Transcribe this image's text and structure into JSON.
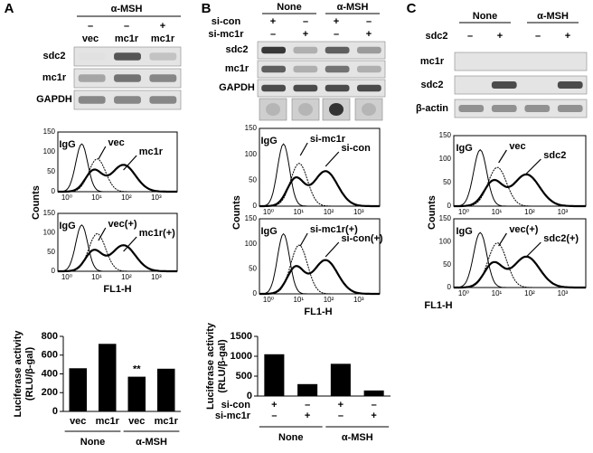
{
  "panels": [
    {
      "label": "A",
      "treatment": "α-MSH",
      "signs": [
        "–",
        "–",
        "+"
      ],
      "lanes": [
        "vec",
        "mc1r",
        "mc1r"
      ],
      "blot_rows": [
        "sdc2",
        "mc1r",
        "GAPDH"
      ],
      "flow": {
        "y_label": "Counts",
        "x_label": "FL1-H",
        "plots": [
          {
            "y_ticks": [
              "150",
              "100",
              "50",
              "0"
            ],
            "x_ticks": [
              "10⁰",
              "10¹",
              "10²",
              "10³"
            ],
            "annotations": [
              "IgG",
              "vec",
              "mc1r"
            ]
          },
          {
            "y_ticks": [
              "150",
              "100",
              "50",
              "0"
            ],
            "x_ticks": [
              "10⁰",
              "10¹",
              "10²",
              "10³"
            ],
            "annotations": [
              "IgG",
              "vec(+)",
              "mc1r(+)"
            ]
          }
        ]
      }
    },
    {
      "label": "B",
      "groups": [
        "None",
        "α-MSH"
      ],
      "sign_rows": [
        {
          "name": "si-con",
          "signs": [
            "+",
            "–",
            "+",
            "–"
          ]
        },
        {
          "name": "si-mc1r",
          "signs": [
            "–",
            "+",
            "–",
            "+"
          ]
        }
      ],
      "blot_rows": [
        "sdc2",
        "mc1r",
        "GAPDH"
      ],
      "flow": {
        "y_label": "Counts",
        "x_label": "FL1-H",
        "plots": [
          {
            "y_ticks": [
              "150",
              "100",
              "50",
              "0"
            ],
            "x_ticks": [
              "10⁰",
              "10¹",
              "10²",
              "10³"
            ],
            "annotations": [
              "IgG",
              "si-mc1r",
              "si-con"
            ]
          },
          {
            "y_ticks": [
              "150",
              "100",
              "50",
              "0"
            ],
            "x_ticks": [
              "10⁰",
              "10¹",
              "10²",
              "10³"
            ],
            "annotations": [
              "IgG",
              "si-mc1r(+)",
              "si-con(+)"
            ]
          }
        ]
      }
    },
    {
      "label": "C",
      "groups": [
        "None",
        "α-MSH"
      ],
      "sign_rows": [
        {
          "name": "sdc2",
          "signs": [
            "–",
            "+",
            "–",
            "+"
          ]
        }
      ],
      "blot_rows": [
        "mc1r",
        "sdc2",
        "β-actin"
      ],
      "flow": {
        "y_label": "Counts",
        "x_label": "FL1-H",
        "plots": [
          {
            "y_ticks": [
              "150",
              "100",
              "50",
              "0"
            ],
            "x_ticks": [
              "10⁰",
              "10¹",
              "10²",
              "10³"
            ],
            "annotations": [
              "IgG",
              "vec",
              "sdc2"
            ]
          },
          {
            "y_ticks": [
              "150",
              "100",
              "50",
              "0"
            ],
            "x_ticks": [
              "10⁰",
              "10¹",
              "10²",
              "10³"
            ],
            "annotations": [
              "IgG",
              "vec(+)",
              "sdc2(+)"
            ]
          }
        ]
      }
    }
  ],
  "chart_data": [
    {
      "type": "bar",
      "y_label": [
        "Luciferase activity",
        "(RLU/β-gal)"
      ],
      "categories": [
        "vec",
        "mc1r",
        "vec",
        "mc1r"
      ],
      "values": [
        460,
        720,
        370,
        455
      ],
      "color": "#000000",
      "groups": [
        "None",
        "α-MSH"
      ],
      "annotation": "**",
      "ylim": [
        0,
        800
      ],
      "yticks": [
        0,
        200,
        400,
        600,
        800
      ]
    },
    {
      "type": "bar",
      "y_label": [
        "Luciferase activity",
        "(RLU/β-gal)"
      ],
      "categories": [
        null,
        null,
        null,
        null
      ],
      "values": [
        1050,
        300,
        810,
        140
      ],
      "color": "#000000",
      "sign_rows": [
        {
          "name": "si-con",
          "signs": [
            "+",
            "–",
            "+",
            "–"
          ]
        },
        {
          "name": "si-mc1r",
          "signs": [
            "–",
            "+",
            "–",
            "+"
          ]
        }
      ],
      "groups": [
        "None",
        "α-MSH"
      ],
      "ylim": [
        0,
        1500
      ],
      "yticks": [
        0,
        500,
        1000,
        1500
      ]
    }
  ]
}
